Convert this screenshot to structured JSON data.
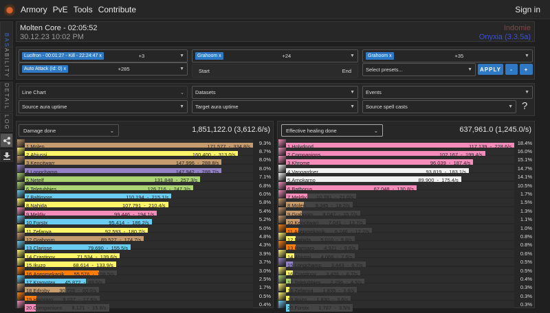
{
  "header": {
    "nav": [
      "Armory",
      "PvE",
      "Tools",
      "Contribute"
    ],
    "sign_in": "Sign in"
  },
  "side_tabs": [
    "BASE",
    "ABILITY",
    "DETAIL",
    "LOG"
  ],
  "side_icons": [
    "share-icon",
    "download-icon"
  ],
  "base": {
    "title": "Molten Core - 02:05:52",
    "date": "30.12.23 10:02 PM",
    "guild": "Indomie",
    "server": "Onyxia (3.3.5a)"
  },
  "ability": {
    "attempt_tag": "Lucifron - 00:01:27 - Kill - 22:24:47 x",
    "attempt_more": "+3",
    "source_tag": "Grahoom x",
    "source_more": "+24",
    "target_tag": "Grahoom x",
    "target_more": "+35",
    "ability_tag": "Auto Attack (Id: 0) x",
    "ability_more": "+285",
    "start": "Start",
    "end": "End",
    "presets_placeholder": "Select presets...",
    "apply": "APPLY",
    "minus": "-",
    "plus": "+"
  },
  "detail": {
    "chart_type": "Line Chart",
    "datasets": "Datasets",
    "events": "Events",
    "source_aura": "Source aura uptime",
    "target_aura": "Target aura uptime",
    "source_casts": "Source spell casts",
    "help": "?"
  },
  "class_colors": {
    "warrior": "#c69b6d",
    "rogue": "#fff569",
    "warlock": "#9482c9",
    "hunter": "#abd473",
    "mage": "#69ccf0",
    "paladin": "#f58cba",
    "druid": "#ff7d0a",
    "priest": "#f2f2f2"
  },
  "left_meter": {
    "mode": "Damage done",
    "total": "1,851,122.0 (3,612.6/s)",
    "rows": [
      [
        "1.Molen",
        "171,577  -  334.8/s",
        "9.3%",
        "warrior",
        171577
      ],
      [
        "2.Ahjussi",
        "160,400  -  313.0/s",
        "8.7%",
        "rogue",
        160400
      ],
      [
        "3.Kencitwarr",
        "147,996  -  288.8/s",
        "8.0%",
        "warrior",
        147996
      ],
      [
        "4.Longchamp",
        "147,942  -  288.7/s",
        "8.0%",
        "warlock",
        147942
      ],
      [
        "5.Netelf",
        "131,848  -  257.3/s",
        "7.1%",
        "hunter",
        131848
      ],
      [
        "6.Teletubbies",
        "126,716  -  247.3/s",
        "6.8%",
        "hunter",
        126716
      ],
      [
        "7.Baltimore",
        "110,194  -  215.1/s",
        "6.0%",
        "mage",
        110194
      ],
      [
        "8.Nahida",
        "107,791  -  210.4/s",
        "5.8%",
        "rogue",
        107791
      ],
      [
        "9.Meldiv",
        "99,446  -  194.1/s",
        "5.4%",
        "paladin",
        99446
      ],
      [
        "10.Forstx",
        "95,414  -  186.2/s",
        "5.2%",
        "mage",
        95414
      ],
      [
        "11.Zefanya",
        "92,593  -  180.7/s",
        "5.0%",
        "rogue",
        92593
      ],
      [
        "12.Grahoom",
        "89,527  -  174.7/s",
        "4.8%",
        "warrior",
        89527
      ],
      [
        "13.Clarisse",
        "79,690  -  155.5/s",
        "4.3%",
        "mage",
        79690
      ],
      [
        "14.Crastinov",
        "71,534  -  139.6/s",
        "3.9%",
        "rogue",
        71534
      ],
      [
        "15.Ikuzo",
        "68,614  -  133.9/s",
        "3.7%",
        "rogue",
        68614
      ],
      [
        "16.Asepmekanik",
        "55,576  -  108.5/s",
        "3.0%",
        "druid",
        55576
      ],
      [
        "17.Kramotax",
        "45,872  -  89.5/s",
        "2.5%",
        "mage",
        45872
      ],
      [
        "18.Edroby",
        "30,729  -  60.0/s",
        "1.7%",
        "warrior",
        30729
      ],
      [
        "19.Hamtaro",
        "9,037  -  17.6/s",
        "0.5%",
        "druid",
        9037
      ],
      [
        "20.Companions",
        "8,121  -  15.8/s",
        "0.4%",
        "paladin",
        8121
      ]
    ]
  },
  "right_meter": {
    "mode": "Effective healing done",
    "total": "637,961.0 (1,245.0/s)",
    "rows": [
      [
        "1.Holydood",
        "117,139  -  228.6/s",
        "18.4%",
        "paladin",
        117139
      ],
      [
        "2.Companions",
        "102,167  -  199.4/s",
        "16.0%",
        "paladin",
        102167
      ],
      [
        "3.Khrome",
        "96,039  -  187.4/s",
        "15.1%",
        "paladin",
        96039
      ],
      [
        "4.Vangardner",
        "93,819  -  183.1/s",
        "14.7%",
        "priest",
        93819
      ],
      [
        "5.Arnokarno",
        "89,900  -  175.4/s",
        "14.1%",
        "priest",
        89900
      ],
      [
        "6.Bathorus",
        "67,048  -  130.8/s",
        "10.5%",
        "paladin",
        67048
      ],
      [
        "7.Meldiv",
        "10,781  -  21.0/s",
        "1.7%",
        "paladin",
        10781
      ],
      [
        "8.Molen",
        "9,345  -  18.2/s",
        "1.5%",
        "warrior",
        9345
      ],
      [
        "9.Grahoom",
        "8,047  -  15.7/s",
        "1.3%",
        "warrior",
        8047
      ],
      [
        "10.Kencitwarr",
        "7,041  -  13.7/s",
        "1.1%",
        "warrior",
        7041
      ],
      [
        "11.Asepmekanik",
        "6,246  -  12.2/s",
        "1.0%",
        "druid",
        6246
      ],
      [
        "12.Nahida",
        "5,010  -  9.8/s",
        "0.8%",
        "rogue",
        5010
      ],
      [
        "13.Hamtaro",
        "4,921  -  9.6/s",
        "0.8%",
        "druid",
        4921
      ],
      [
        "14.Ahjussi",
        "4,066  -  7.9/s",
        "0.6%",
        "rogue",
        4066
      ],
      [
        "15.Longchamp",
        "3,443  -  6.7/s",
        "0.5%",
        "warlock",
        3443
      ],
      [
        "16.Crastinov",
        "3,426  -  6.7/s",
        "0.5%",
        "rogue",
        3426
      ],
      [
        "17.Teletubbies",
        "2,296  -  4.5/s",
        "0.4%",
        "hunter",
        2296
      ],
      [
        "18.Zefanya",
        "1,835  -  3.6/s",
        "0.3%",
        "rogue",
        1835
      ],
      [
        "19.Ikuzo",
        "1,830  -  3.6/s",
        "0.3%",
        "rogue",
        1830
      ],
      [
        "20.Forstx",
        "1,787  -  3.5/s",
        "0.3%",
        "mage",
        1787
      ]
    ]
  }
}
